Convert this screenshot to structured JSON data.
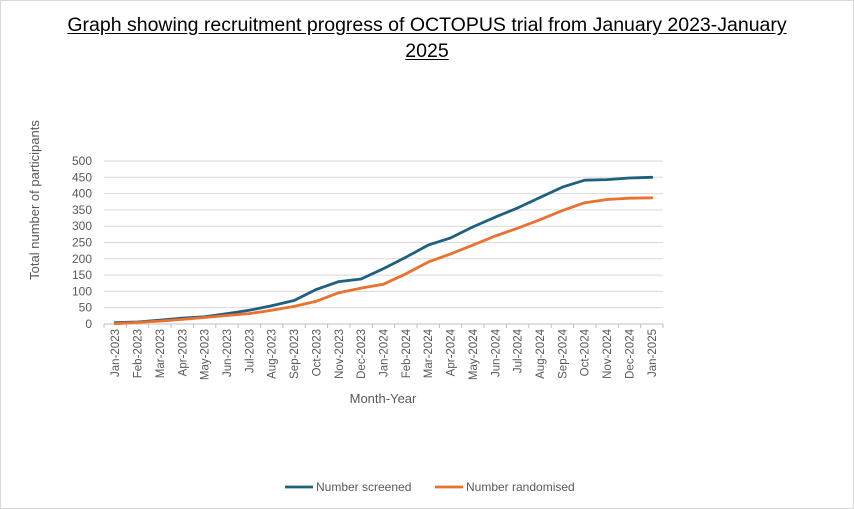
{
  "chart_data": {
    "type": "line",
    "title": "Graph showing recruitment progress of OCTOPUS trial from January 2023-January 2025",
    "xlabel": "Month-Year",
    "ylabel": "Total number of participants",
    "ylim": [
      0,
      500
    ],
    "yticks": [
      0,
      50,
      100,
      150,
      200,
      250,
      300,
      350,
      400,
      450,
      500
    ],
    "grid": true,
    "legend_position": "bottom",
    "categories": [
      "Jan-2023",
      "Feb-2023",
      "Mar-2023",
      "Apr-2023",
      "May-2023",
      "Jun-2023",
      "Jul-2023",
      "Aug-2023",
      "Sep-2023",
      "Oct-2023",
      "Nov-2023",
      "Dec-2023",
      "Jan-2024",
      "Feb-2024",
      "Mar-2024",
      "Apr-2024",
      "May-2024",
      "Jun-2024",
      "Jul-2024",
      "Aug-2024",
      "Sep-2024",
      "Oct-2024",
      "Nov-2024",
      "Dec-2024",
      "Jan-2025"
    ],
    "series": [
      {
        "name": "Number screened",
        "color": "#1f5f7f",
        "values": [
          4,
          6,
          12,
          18,
          22,
          32,
          42,
          56,
          72,
          106,
          130,
          138,
          170,
          205,
          242,
          264,
          298,
          328,
          356,
          388,
          420,
          441,
          443,
          448,
          450
        ]
      },
      {
        "name": "Number randomised",
        "color": "#e9722f",
        "values": [
          1,
          5,
          9,
          14,
          20,
          26,
          32,
          42,
          54,
          70,
          96,
          110,
          122,
          154,
          190,
          215,
          242,
          270,
          294,
          320,
          348,
          372,
          382,
          386,
          387
        ]
      }
    ]
  }
}
